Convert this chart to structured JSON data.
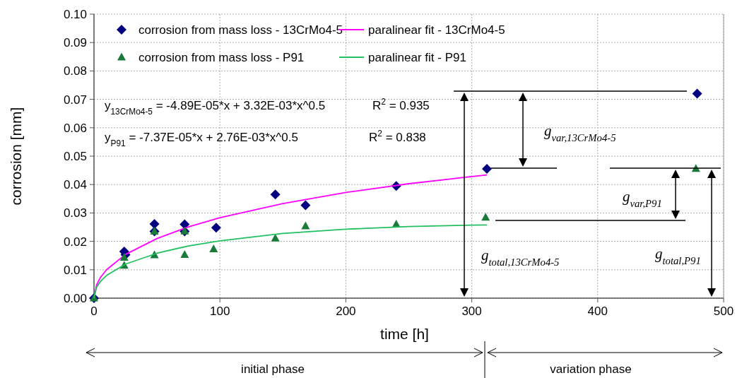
{
  "chart_data": {
    "type": "scatter",
    "xlabel": "time [h]",
    "ylabel": "corrosion [mm]",
    "xlim": [
      0,
      500
    ],
    "xticks": [
      0,
      100,
      200,
      300,
      400,
      500
    ],
    "ylim": [
      0,
      0.1
    ],
    "yticks": [
      {
        "value": 0,
        "label": "0.00"
      },
      {
        "value": 0.01,
        "label": "0.01"
      },
      {
        "value": 0.02,
        "label": "0.02"
      },
      {
        "value": 0.03,
        "label": "0.03"
      },
      {
        "value": 0.04,
        "label": "0.04"
      },
      {
        "value": 0.05,
        "label": "0.05"
      },
      {
        "value": 0.06,
        "label": "0.06"
      },
      {
        "value": 0.07,
        "label": "0.07"
      },
      {
        "value": 0.08,
        "label": "0.08"
      },
      {
        "value": 0.09,
        "label": "0.09"
      },
      {
        "value": 0.1,
        "label": "0.10"
      }
    ],
    "grid": true,
    "legend": "top left",
    "series": [
      {
        "name": "corrosion from mass loss - 13CrMo4-5",
        "marker": "diamond",
        "color": "#000080",
        "x": [
          0,
          24,
          25,
          48,
          48,
          72,
          72,
          97,
          144,
          168,
          240,
          312,
          479
        ],
        "values": [
          0,
          0.0164,
          0.0153,
          0.0261,
          0.0235,
          0.026,
          0.0235,
          0.0248,
          0.0365,
          0.0327,
          0.0395,
          0.0455,
          0.072
        ]
      },
      {
        "name": "paralinear fit - 13CrMo4-5",
        "type": "line",
        "color": "#ff00ff",
        "x": [
          0,
          2,
          5,
          10,
          25,
          50,
          75,
          100,
          150,
          200,
          250,
          300,
          312
        ],
        "values": [
          0,
          0.0046,
          0.0072,
          0.01,
          0.0154,
          0.021,
          0.0251,
          0.0283,
          0.0333,
          0.0372,
          0.0403,
          0.0428,
          0.0434
        ]
      },
      {
        "name": "corrosion from mass loss - P91",
        "marker": "triangle",
        "color": "#1a7a3a",
        "x": [
          0,
          24,
          24,
          48,
          48,
          72,
          72,
          95,
          144,
          168,
          240,
          311,
          478
        ],
        "values": [
          0,
          0.0143,
          0.0115,
          0.0235,
          0.0152,
          0.0236,
          0.0153,
          0.0173,
          0.0211,
          0.0254,
          0.026,
          0.0284,
          0.0456
        ]
      },
      {
        "name": "paralinear fit - P91",
        "type": "line",
        "color": "#22c060",
        "x": [
          0,
          2,
          5,
          10,
          25,
          50,
          75,
          100,
          150,
          200,
          250,
          300,
          312
        ],
        "values": [
          0,
          0.0038,
          0.0058,
          0.008,
          0.012,
          0.0158,
          0.0184,
          0.0202,
          0.0228,
          0.0243,
          0.0252,
          0.0257,
          0.0258
        ]
      }
    ],
    "annotations": [
      "y$_{13CrMo4-5}$ = -4.89E-05*x + 3.32E-03*x^0.5",
      "R$^{2}$ = 0.935",
      "y$_{P91}$ = -7.37E-05*x + 2.76E-03*x^0.5",
      "R$^{2}$ = 0.838",
      "g$_{var,13CrMo4-5}$",
      "g$_{var,P91}$",
      "g$_{total,13CrMo4-5}$",
      "g$_{total,P91}$",
      "initial phase",
      "variation phase"
    ]
  }
}
